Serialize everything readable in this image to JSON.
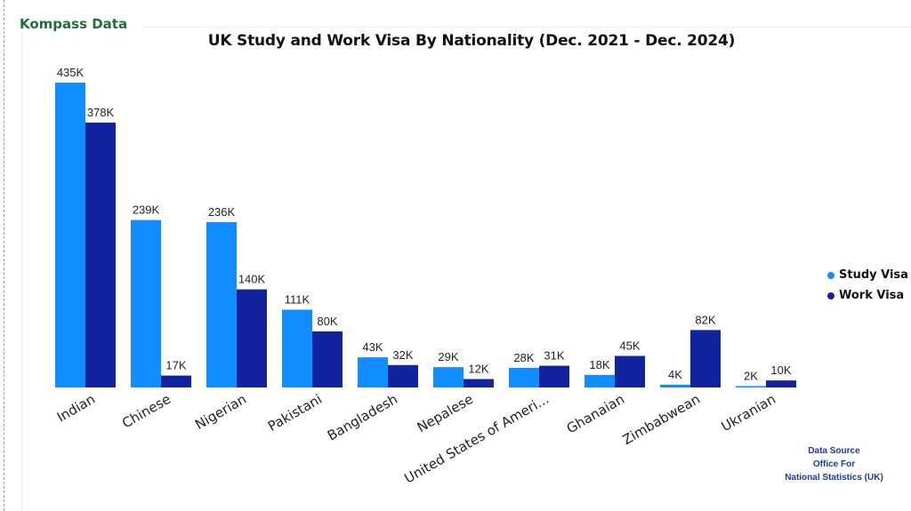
{
  "brand": "Kompass Data",
  "colors": {
    "study": "#118dff",
    "work": "#12239e",
    "brand": "#1f6f3a",
    "source": "#1a3aa8"
  },
  "chart_data": {
    "type": "bar",
    "title": "UK Study and Work Visa By Nationality (Dec. 2021 - Dec. 2024)",
    "categories": [
      "Indian",
      "Chinese",
      "Nigerian",
      "Pakistani",
      "Bangladesh",
      "Nepalese",
      "United States of Ameri...",
      "Ghanaian",
      "Zimbabwean",
      "Ukranian"
    ],
    "series": [
      {
        "name": "Study Visa",
        "values": [
          435,
          239,
          236,
          111,
          43,
          29,
          28,
          18,
          4,
          2
        ],
        "labels": [
          "435K",
          "239K",
          "236K",
          "111K",
          "43K",
          "29K",
          "28K",
          "18K",
          "4K",
          "2K"
        ]
      },
      {
        "name": "Work Visa",
        "values": [
          378,
          17,
          140,
          80,
          32,
          12,
          31,
          45,
          82,
          10
        ],
        "labels": [
          "378K",
          "17K",
          "140K",
          "80K",
          "32K",
          "12K",
          "31K",
          "45K",
          "82K",
          "10K"
        ]
      }
    ],
    "unit": "K",
    "ylim": [
      0,
      435
    ],
    "grid": false,
    "legend": "right"
  },
  "source": {
    "line1": "Data Source",
    "line2": "Office For",
    "line3": "National Statistics (UK)"
  }
}
